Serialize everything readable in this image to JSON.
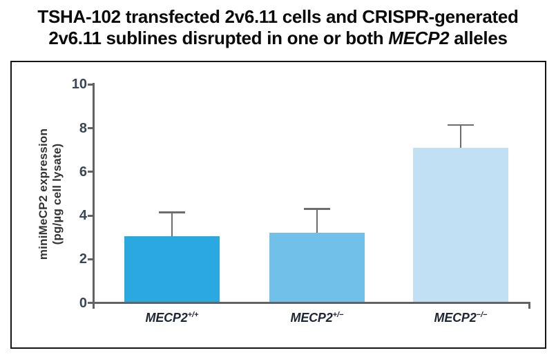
{
  "title": {
    "line1": "TSHA-102 transfected 2v6.11 cells and CRISPR-generated",
    "line2_pre": "2v6.11 sublines disrupted in one or both ",
    "line2_italic": "MECP2",
    "line2_post": " alleles"
  },
  "chart_data": {
    "type": "bar",
    "title": "TSHA-102 transfected 2v6.11 cells and CRISPR-generated 2v6.11 sublines disrupted in one or both MECP2 alleles",
    "ylabel_line1": "miniMeCP2 expression",
    "ylabel_line2": "(pg/µg cell lysate)",
    "ylim": [
      0,
      10
    ],
    "yticks": [
      0,
      2,
      4,
      6,
      8,
      10
    ],
    "grid": false,
    "legend": null,
    "categories": [
      "MECP2+/+",
      "MECP2+/−",
      "MECP2−/−"
    ],
    "categories_rich": [
      {
        "base": "MECP2",
        "sup": "+/+"
      },
      {
        "base": "MECP2",
        "sup": "+/−"
      },
      {
        "base": "MECP2",
        "sup": "−/−"
      }
    ],
    "values": [
      3.0,
      3.15,
      7.05
    ],
    "error_upper": [
      1.1,
      1.1,
      1.05
    ],
    "bar_colors": [
      "#2AA9E0",
      "#70C0EA",
      "#C1E0F4"
    ],
    "axis_color": "#606265",
    "error_bar_color": "#6B6D70",
    "tick_label_color": "#3A4656",
    "category_label_color": "#1E2633"
  }
}
